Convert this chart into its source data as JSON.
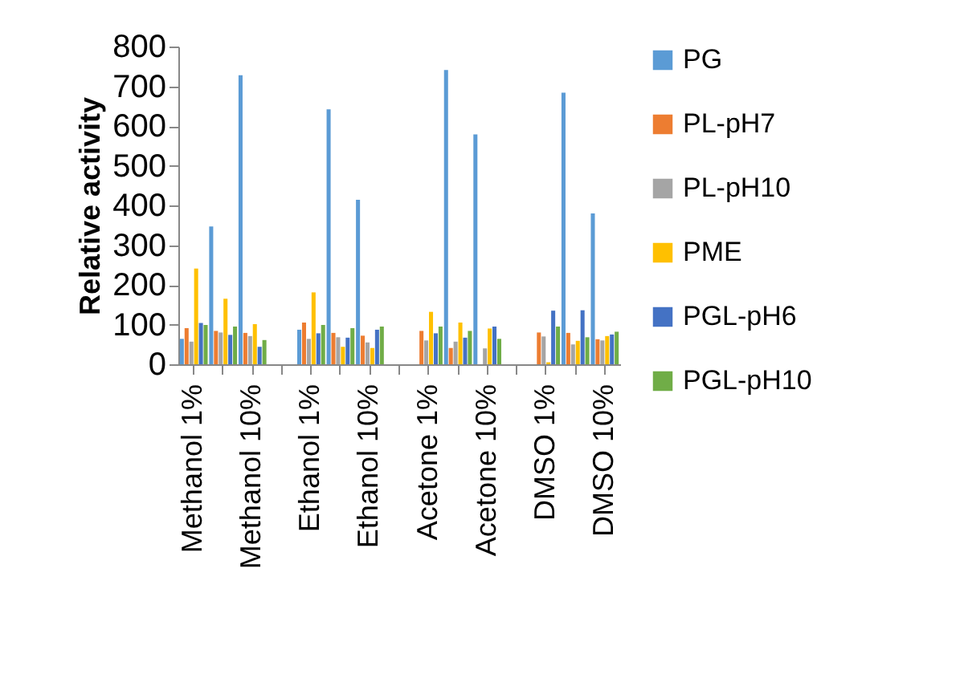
{
  "chart_data": {
    "type": "bar",
    "ylabel": "Relative activity",
    "categories": [
      "Methanol 1%",
      null,
      "Methanol 10%",
      null,
      "Ethanol 1%",
      null,
      "Ethanol 10%",
      null,
      "Acetone 1%",
      null,
      "Acetone 10%",
      null,
      "DMSO 1%",
      null,
      "DMSO 10%"
    ],
    "series": [
      {
        "name": "PG",
        "color": "#5b9bd5",
        "values": [
          64,
          347,
          728,
          null,
          87,
          642,
          414,
          null,
          null,
          741,
          579,
          null,
          null,
          684,
          380
        ]
      },
      {
        "name": "PL-pH7",
        "color": "#ed7d31",
        "values": [
          91,
          84,
          79,
          null,
          105,
          79,
          72,
          null,
          84,
          41,
          null,
          null,
          80,
          79,
          63
        ]
      },
      {
        "name": "PL-pH10",
        "color": "#a5a5a5",
        "values": [
          57,
          80,
          71,
          null,
          64,
          68,
          55,
          null,
          60,
          57,
          40,
          null,
          70,
          50,
          60
        ]
      },
      {
        "name": "PME",
        "color": "#ffc000",
        "values": [
          241,
          165,
          101,
          null,
          181,
          44,
          41,
          null,
          132,
          105,
          90,
          null,
          5,
          59,
          71
        ]
      },
      {
        "name": "PGL-pH6",
        "color": "#4472c4",
        "values": [
          104,
          74,
          44,
          null,
          78,
          67,
          87,
          null,
          78,
          67,
          95,
          null,
          135,
          136,
          75
        ]
      },
      {
        "name": "PGL-pH10",
        "color": "#70ad47",
        "values": [
          99,
          95,
          61,
          null,
          99,
          91,
          95,
          null,
          95,
          84,
          64,
          null,
          95,
          68,
          82
        ]
      }
    ],
    "ylim": [
      0,
      800
    ],
    "yticks": [
      0,
      100,
      200,
      300,
      400,
      500,
      600,
      700,
      800
    ],
    "grid": false,
    "legend": "right"
  }
}
